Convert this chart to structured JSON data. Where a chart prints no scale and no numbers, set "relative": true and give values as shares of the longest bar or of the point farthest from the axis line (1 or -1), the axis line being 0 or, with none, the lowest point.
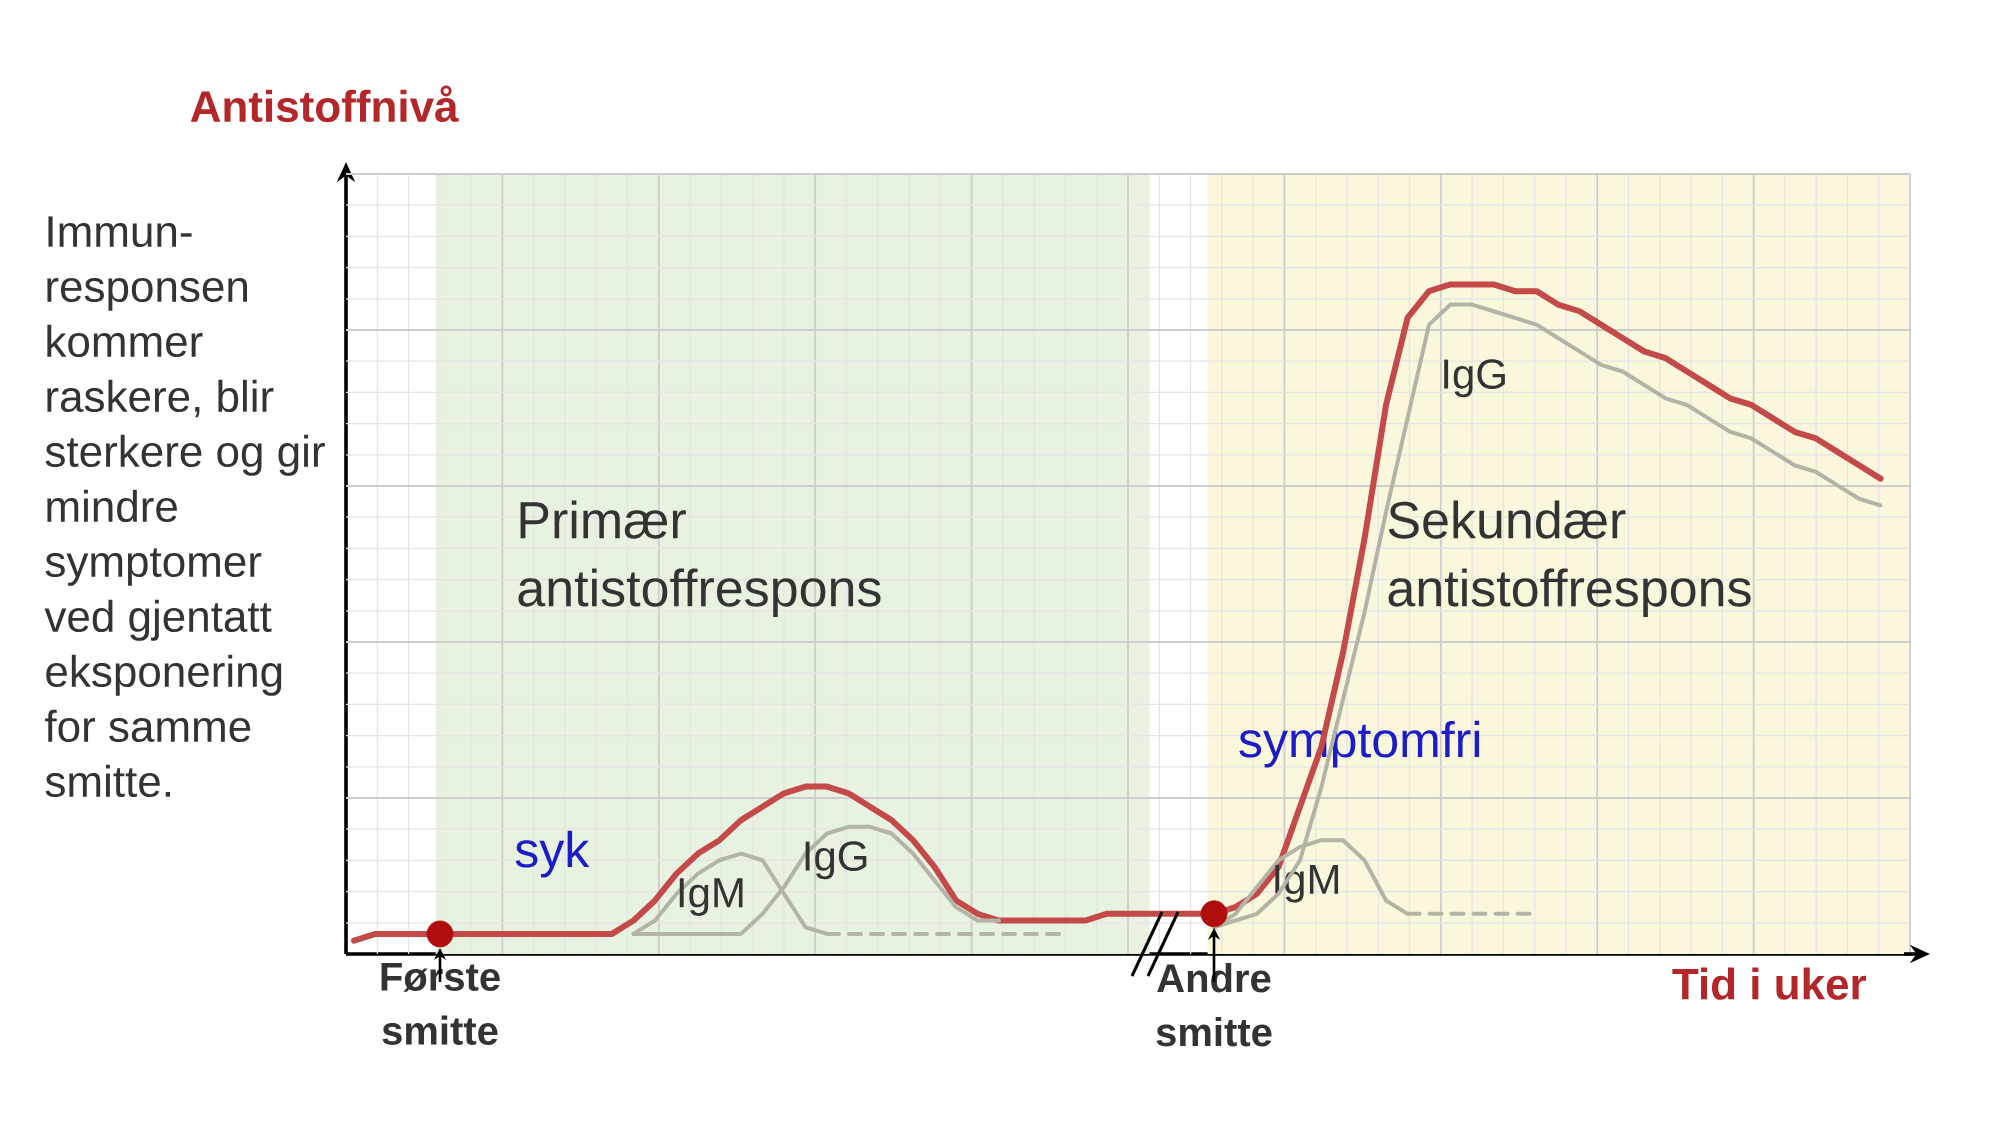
{
  "chart_data": {
    "type": "line",
    "relative": true,
    "xlabel": "Tid i uker",
    "ylabel": "Antistoffnivå",
    "grid": true,
    "categories": [
      null,
      null,
      null,
      null,
      "Første smitte",
      null,
      null,
      null,
      null,
      null,
      null,
      null,
      null,
      null,
      null,
      null,
      null,
      null,
      null,
      null,
      null,
      null,
      null,
      null,
      null,
      null,
      null,
      null,
      null,
      null,
      null,
      null,
      null,
      null,
      null,
      null,
      null,
      null,
      null,
      null,
      "Andre smitte",
      null,
      null,
      null,
      null,
      null,
      null,
      null,
      null,
      null,
      null,
      null,
      null,
      null,
      null,
      null,
      null,
      null,
      null,
      null,
      null,
      null,
      null,
      null,
      null,
      null,
      null,
      null,
      null,
      null,
      null,
      null
    ],
    "series": [
      {
        "color": "#c44a4a",
        "values": [
          0.02,
          0.03,
          0.03,
          0.03,
          0.03,
          0.03,
          0.03,
          0.03,
          0.03,
          0.03,
          0.03,
          0.03,
          0.03,
          0.05,
          0.08,
          0.12,
          0.15,
          0.17,
          0.2,
          0.22,
          0.24,
          0.25,
          0.25,
          0.24,
          0.22,
          0.2,
          0.17,
          0.13,
          0.08,
          0.06,
          0.05,
          0.05,
          0.05,
          0.05,
          0.05,
          0.06,
          0.06,
          0.06,
          0.06,
          0.06,
          0.06,
          0.07,
          0.09,
          0.13,
          0.22,
          0.31,
          0.45,
          0.62,
          0.82,
          0.95,
          0.99,
          1,
          1,
          1,
          0.99,
          0.99,
          0.97,
          0.96,
          0.94,
          0.92,
          0.9,
          0.89,
          0.87,
          0.85,
          0.83,
          0.82,
          0.8,
          0.78,
          0.77,
          0.75,
          0.73,
          0.71
        ]
      },
      {
        "name": "IgM",
        "color": "#b4b4a6",
        "values": [
          null,
          null,
          null,
          null,
          null,
          null,
          null,
          null,
          null,
          null,
          null,
          null,
          null,
          0.03,
          0.05,
          0.09,
          0.12,
          0.14,
          0.15,
          0.14,
          0.09,
          0.04,
          0.03,
          null,
          null,
          null,
          null,
          null,
          null,
          null,
          null,
          null,
          null,
          null,
          null,
          null,
          null,
          null,
          null,
          null,
          null,
          null,
          null,
          null,
          null,
          null,
          null,
          null,
          null,
          null,
          null,
          null,
          null,
          null,
          null,
          null,
          null,
          null,
          null,
          null,
          null,
          null,
          null,
          null,
          null,
          null,
          null,
          null,
          null,
          null,
          null,
          null
        ]
      },
      {
        "name": "IgG",
        "color": "#b4b4a6",
        "values": [
          null,
          null,
          null,
          null,
          null,
          null,
          null,
          null,
          null,
          null,
          null,
          null,
          null,
          0.03,
          0.03,
          0.03,
          0.03,
          0.03,
          0.03,
          0.06,
          0.1,
          0.15,
          0.18,
          0.19,
          0.19,
          0.18,
          0.15,
          0.11,
          0.07,
          0.05,
          0.05,
          null,
          null,
          null,
          null,
          null,
          null,
          null,
          null,
          null,
          null,
          null,
          null,
          null,
          null,
          null,
          null,
          null,
          null,
          null,
          null,
          null,
          null,
          null,
          null,
          null,
          null,
          null,
          null,
          null,
          null,
          null,
          null,
          null,
          null,
          null,
          null,
          null,
          null,
          null,
          null,
          null
        ]
      },
      {
        "name": "IgM",
        "color": "#b4b4a6",
        "values": [
          null,
          null,
          null,
          null,
          null,
          null,
          null,
          null,
          null,
          null,
          null,
          null,
          null,
          null,
          null,
          null,
          null,
          null,
          null,
          null,
          null,
          null,
          null,
          null,
          null,
          null,
          null,
          null,
          null,
          null,
          null,
          null,
          null,
          null,
          null,
          null,
          null,
          null,
          null,
          null,
          0.04,
          0.06,
          0.1,
          0.14,
          0.16,
          0.17,
          0.17,
          0.14,
          0.08,
          0.06,
          null,
          null,
          null,
          null,
          null,
          null,
          null,
          null,
          null,
          null,
          null,
          null,
          null,
          null,
          null,
          null,
          null,
          null,
          null,
          null,
          null,
          null
        ]
      },
      {
        "name": "IgG",
        "color": "#b4b4a6",
        "values": [
          null,
          null,
          null,
          null,
          null,
          null,
          null,
          null,
          null,
          null,
          null,
          null,
          null,
          null,
          null,
          null,
          null,
          null,
          null,
          null,
          null,
          null,
          null,
          null,
          null,
          null,
          null,
          null,
          null,
          null,
          null,
          null,
          null,
          null,
          null,
          null,
          null,
          null,
          null,
          null,
          0.04,
          0.05,
          0.06,
          0.09,
          0.14,
          0.25,
          0.38,
          0.51,
          0.66,
          0.8,
          0.94,
          0.97,
          0.97,
          0.96,
          0.95,
          0.94,
          0.92,
          0.9,
          0.88,
          0.87,
          0.85,
          0.83,
          0.82,
          0.8,
          0.78,
          0.77,
          0.75,
          0.73,
          0.72,
          0.7,
          0.68,
          0.67
        ]
      },
      {
        "color": "#b4b4a6",
        "line_style": "dashed",
        "values": [
          null,
          null,
          null,
          null,
          null,
          null,
          null,
          null,
          null,
          null,
          null,
          null,
          null,
          null,
          null,
          null,
          null,
          null,
          null,
          null,
          null,
          null,
          0.03,
          0.03,
          0.03,
          0.03,
          0.03,
          0.03,
          0.03,
          0.03,
          0.03,
          0.03,
          0.03,
          0.03,
          null,
          null,
          null,
          null,
          null,
          null,
          null,
          null,
          null,
          null,
          null,
          null,
          null,
          null,
          null,
          0.06,
          0.06,
          0.06,
          0.06,
          0.06,
          0.06,
          0.06,
          null,
          null,
          null,
          null,
          null,
          null,
          null,
          null,
          null,
          null,
          null,
          null,
          null,
          null,
          null,
          null
        ]
      },
      {
        "type": "scatter",
        "marker": "circle",
        "color": "#b00d0d",
        "values": [
          null,
          null,
          null,
          null,
          0.03,
          null,
          null,
          null,
          null,
          null,
          null,
          null,
          null,
          null,
          null,
          null,
          null,
          null,
          null,
          null,
          null,
          null,
          null,
          null,
          null,
          null,
          null,
          null,
          null,
          null,
          null,
          null,
          null,
          null,
          null,
          null,
          null,
          null,
          null,
          null,
          0.06,
          null,
          null,
          null,
          null,
          null,
          null,
          null,
          null,
          null,
          null,
          null,
          null,
          null,
          null,
          null,
          null,
          null,
          null,
          null,
          null,
          null,
          null,
          null,
          null,
          null,
          null,
          null,
          null,
          null,
          null,
          null
        ]
      }
    ],
    "annotations": [
      "Immun-responsen kommer raskere, blir sterkere og gir mindre symptomer ved gjentatt eksponering for samme smitte.",
      "Primær antistoffrespons",
      "Sekundær antistoffrespons",
      "syk",
      "symptomfri"
    ]
  }
}
